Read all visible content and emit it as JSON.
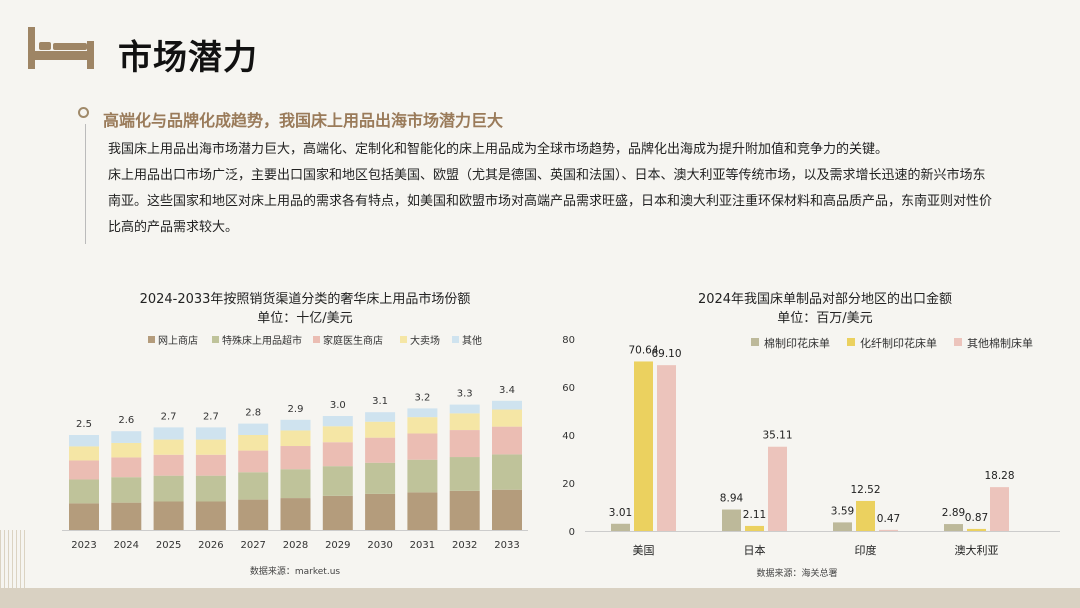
{
  "page": {
    "title": "市场潜力",
    "section_heading": "高端化与品牌化成趋势，我国床上用品出海市场潜力巨大",
    "paragraphs": [
      "我国床上用品出海市场潜力巨大，高端化、定制化和智能化的床上用品成为全球市场趋势，品牌化出海成为提升附加值和竞争力的关键。",
      "床上用品出口市场广泛，主要出口国家和地区包括美国、欧盟（尤其是德国、英国和法国）、日本、澳大利亚等传统市场，以及需求增长迅速的新兴市场东南亚。这些国家和地区对床上用品的需求各有特点，如美国和欧盟市场对高端产品需求旺盛，日本和澳大利亚注重环保材料和高品质产品，东南亚则对性价比高的产品需求较大。"
    ]
  },
  "chart_data": [
    {
      "type": "bar",
      "stacked": true,
      "title": "2024-2033年按照销货渠道分类的奢华床上用品市场份额",
      "subtitle": "单位：十亿/美元",
      "categories": [
        "2023",
        "2024",
        "2025",
        "2026",
        "2027",
        "2028",
        "2029",
        "2030",
        "2031",
        "2032",
        "2033"
      ],
      "totals": [
        "2.5",
        "2.6",
        "2.7",
        "2.7",
        "2.8",
        "2.9",
        "3.0",
        "3.1",
        "3.2",
        "3.3",
        "3.4"
      ],
      "series": [
        {
          "name": "网上商店",
          "color": "#b49c7c",
          "values": [
            0.7,
            0.72,
            0.75,
            0.75,
            0.8,
            0.84,
            0.9,
            0.95,
            0.99,
            1.03,
            1.06
          ]
        },
        {
          "name": "特殊床上用品超市",
          "color": "#bfc39a",
          "values": [
            0.63,
            0.67,
            0.68,
            0.68,
            0.72,
            0.76,
            0.78,
            0.82,
            0.86,
            0.89,
            0.93
          ]
        },
        {
          "name": "家庭医生商店",
          "color": "#ebbdb3",
          "values": [
            0.5,
            0.52,
            0.55,
            0.55,
            0.57,
            0.61,
            0.63,
            0.66,
            0.69,
            0.71,
            0.73
          ]
        },
        {
          "name": "大卖场",
          "color": "#f5e6a5",
          "values": [
            0.37,
            0.38,
            0.4,
            0.4,
            0.41,
            0.41,
            0.42,
            0.42,
            0.43,
            0.44,
            0.45
          ]
        },
        {
          "name": "其他",
          "color": "#cfe3ef",
          "values": [
            0.3,
            0.31,
            0.32,
            0.32,
            0.3,
            0.28,
            0.27,
            0.25,
            0.23,
            0.23,
            0.23
          ]
        }
      ],
      "legend_position": "top",
      "source": "数据来源：market.us"
    },
    {
      "type": "bar",
      "title": "2024年我国床单制品对部分地区的出口金额",
      "subtitle": "单位：百万/美元",
      "categories": [
        "美国",
        "日本",
        "印度",
        "澳大利亚"
      ],
      "series": [
        {
          "name": "棉制印花床单",
          "color": "#bdb99a",
          "values": [
            3.01,
            8.94,
            3.59,
            2.89
          ]
        },
        {
          "name": "化纤制印花床单",
          "color": "#ebd15f",
          "values": [
            70.64,
            2.11,
            12.52,
            0.87
          ]
        },
        {
          "name": "其他棉制床单",
          "color": "#ecc4bc",
          "values": [
            69.1,
            35.11,
            0.47,
            18.28
          ]
        }
      ],
      "ylim": [
        0,
        80
      ],
      "yticks": [
        0,
        20,
        40,
        60,
        80
      ],
      "legend_position": "top-right",
      "source": "数据来源：海关总署"
    }
  ]
}
